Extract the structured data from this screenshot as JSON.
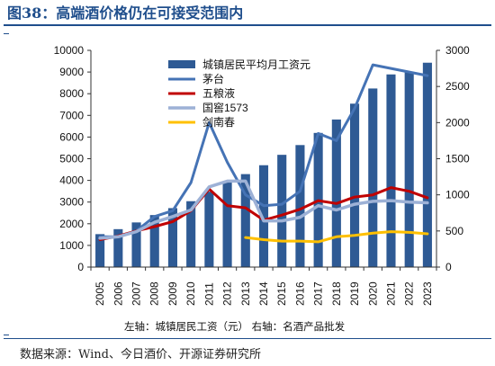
{
  "header": {
    "title": "图38：高端酒价格仍在可接受范围内"
  },
  "footer": {
    "source": "数据来源：Wind、今日酒价、开源证券研究所"
  },
  "colors": {
    "title": "#1f4e8c",
    "bars": "#2e5a94",
    "maotai": "#4573b5",
    "wuliangye": "#c00000",
    "guojiao": "#9db1d6",
    "jiannanchun": "#ffc000"
  },
  "chart_data": {
    "type": "bar+line",
    "categories": [
      "2005",
      "2006",
      "2007",
      "2008",
      "2009",
      "2010",
      "2011",
      "2012",
      "2013",
      "2014",
      "2015",
      "2016",
      "2017",
      "2018",
      "2019",
      "2020",
      "2021",
      "2022",
      "2023"
    ],
    "left_axis": {
      "min": 0,
      "max": 10000,
      "ticks": [
        "0",
        "1000",
        "2000",
        "3000",
        "4000",
        "5000",
        "6000",
        "7000",
        "8000",
        "9000",
        "10000"
      ]
    },
    "right_axis": {
      "min": 0,
      "max": 3000,
      "ticks": [
        "0",
        "500",
        "1000",
        "1500",
        "2000",
        "2500",
        "3000"
      ]
    },
    "axis_note": "左轴：城镇居民工资（元）  右轴：名酒产品批发",
    "bars": {
      "name": "城镇居民平均月工资元",
      "axis": "left",
      "values": [
        1520,
        1750,
        2060,
        2400,
        2720,
        3040,
        3480,
        3900,
        4290,
        4700,
        5180,
        5630,
        6190,
        6810,
        7540,
        8240,
        8890,
        9010,
        9430
      ]
    },
    "lines": [
      {
        "name": "茅台",
        "axis": "right",
        "values": [
          420,
          420,
          500,
          700,
          780,
          1170,
          2000,
          1450,
          1000,
          850,
          870,
          1050,
          1850,
          1750,
          2200,
          2800,
          2750,
          2700,
          2650
        ]
      },
      {
        "name": "五粮液",
        "axis": "right",
        "values": [
          380,
          430,
          500,
          560,
          630,
          780,
          1080,
          850,
          820,
          650,
          720,
          800,
          920,
          880,
          970,
          1000,
          1100,
          1050,
          960
        ]
      },
      {
        "name": "国窖1573",
        "axis": "right",
        "values": [
          400,
          420,
          490,
          620,
          700,
          790,
          1110,
          1190,
          1190,
          640,
          640,
          690,
          850,
          790,
          870,
          910,
          920,
          900,
          890
        ]
      },
      {
        "name": "剑南春",
        "axis": "right",
        "start_index": 8,
        "values": [
          410,
          380,
          360,
          360,
          350,
          420,
          440,
          470,
          490,
          480,
          460
        ]
      }
    ]
  }
}
